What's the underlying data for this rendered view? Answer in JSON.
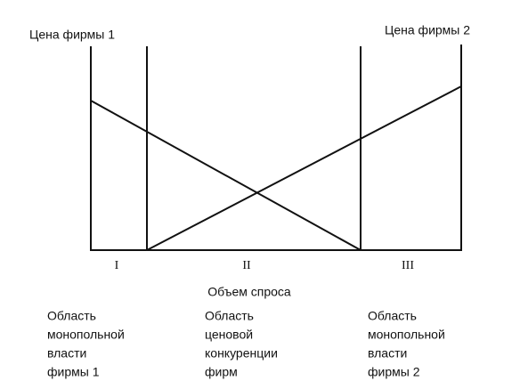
{
  "axes": {
    "left_label": "Цена фирмы 1",
    "right_label": "Цена фирмы 2",
    "x_label": "Объем спроса"
  },
  "zones": [
    {
      "numeral": "I",
      "description": [
        "Область",
        "монопольной",
        "власти",
        "фирмы 1"
      ]
    },
    {
      "numeral": "II",
      "description": [
        "Область",
        "ценовой",
        "конкуренции",
        "фирм"
      ]
    },
    {
      "numeral": "III",
      "description": [
        "Область",
        "монопольной",
        "власти",
        "фирмы 2"
      ]
    }
  ]
}
